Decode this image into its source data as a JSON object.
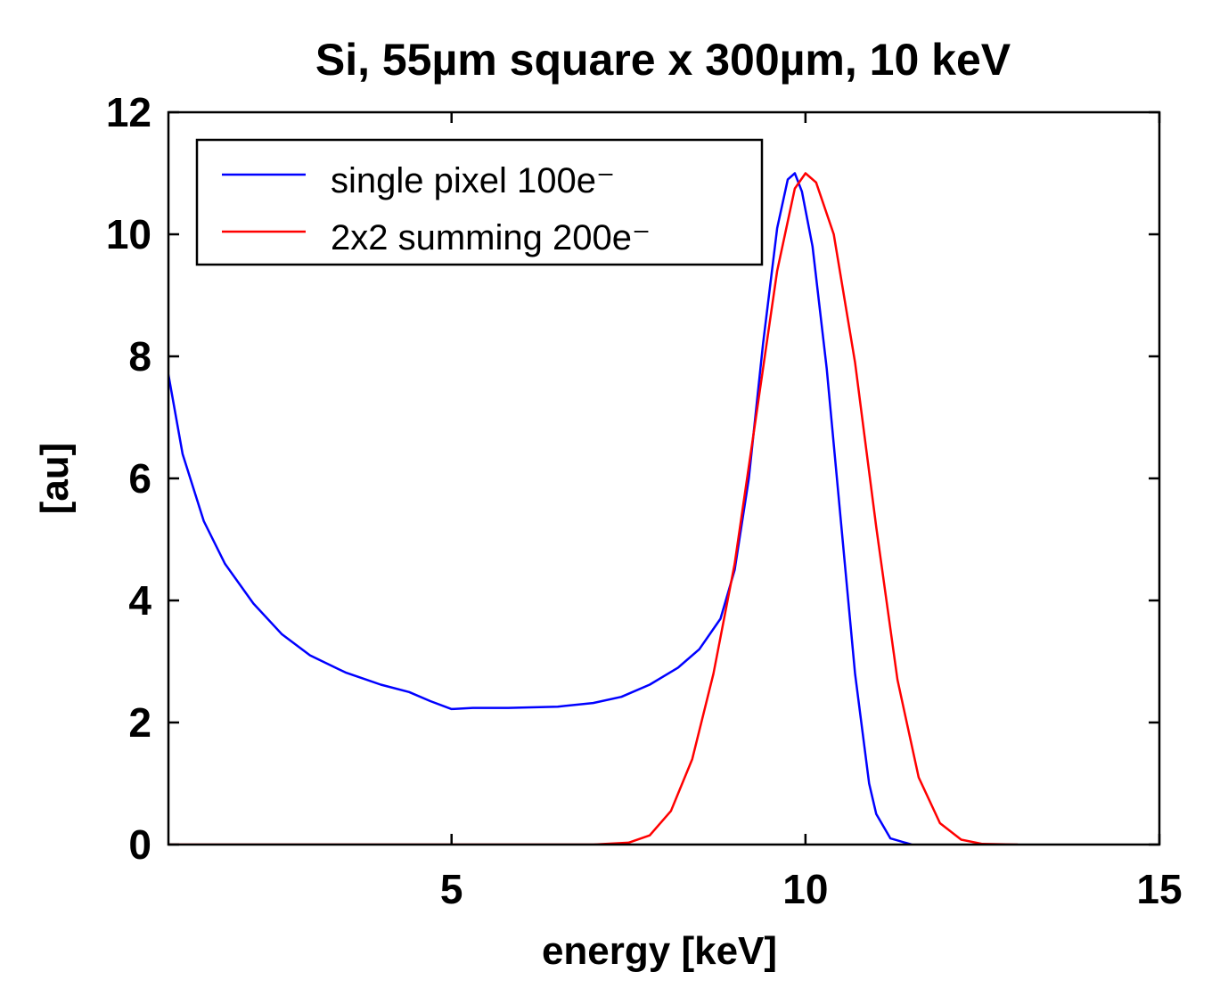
{
  "chart_data": {
    "type": "line",
    "title": "Si, 55µm square x 300µm, 10 keV",
    "xlabel": "energy [keV]",
    "ylabel": "[au]",
    "xlim": [
      1,
      15
    ],
    "ylim": [
      0,
      12
    ],
    "xticks": [
      5,
      10,
      15
    ],
    "yticks": [
      0,
      2,
      4,
      6,
      8,
      10,
      12
    ],
    "grid": false,
    "legend_position": "top-left",
    "series": [
      {
        "name": "single pixel 100e⁻",
        "color": "#0000ff",
        "points": [
          [
            1.0,
            7.7
          ],
          [
            1.2,
            6.4
          ],
          [
            1.5,
            5.3
          ],
          [
            1.8,
            4.6
          ],
          [
            2.2,
            3.95
          ],
          [
            2.6,
            3.45
          ],
          [
            3.0,
            3.1
          ],
          [
            3.5,
            2.82
          ],
          [
            4.0,
            2.62
          ],
          [
            4.4,
            2.5
          ],
          [
            4.7,
            2.35
          ],
          [
            5.0,
            2.22
          ],
          [
            5.3,
            2.24
          ],
          [
            5.8,
            2.24
          ],
          [
            6.5,
            2.26
          ],
          [
            7.0,
            2.32
          ],
          [
            7.4,
            2.42
          ],
          [
            7.8,
            2.62
          ],
          [
            8.2,
            2.9
          ],
          [
            8.5,
            3.2
          ],
          [
            8.8,
            3.7
          ],
          [
            9.0,
            4.5
          ],
          [
            9.2,
            6.0
          ],
          [
            9.4,
            8.2
          ],
          [
            9.6,
            10.1
          ],
          [
            9.75,
            10.9
          ],
          [
            9.85,
            11.0
          ],
          [
            9.95,
            10.7
          ],
          [
            10.1,
            9.8
          ],
          [
            10.3,
            7.8
          ],
          [
            10.5,
            5.3
          ],
          [
            10.7,
            2.8
          ],
          [
            10.9,
            1.0
          ],
          [
            11.0,
            0.5
          ],
          [
            11.2,
            0.1
          ],
          [
            11.5,
            0.0
          ]
        ]
      },
      {
        "name": "2x2 summing 200e⁻",
        "color": "#ff0000",
        "points": [
          [
            1.0,
            0.0
          ],
          [
            7.0,
            0.0
          ],
          [
            7.5,
            0.03
          ],
          [
            7.8,
            0.15
          ],
          [
            8.1,
            0.55
          ],
          [
            8.4,
            1.4
          ],
          [
            8.7,
            2.8
          ],
          [
            9.0,
            4.6
          ],
          [
            9.3,
            7.0
          ],
          [
            9.6,
            9.4
          ],
          [
            9.85,
            10.75
          ],
          [
            10.0,
            11.0
          ],
          [
            10.15,
            10.85
          ],
          [
            10.4,
            10.0
          ],
          [
            10.7,
            7.9
          ],
          [
            11.0,
            5.2
          ],
          [
            11.3,
            2.7
          ],
          [
            11.6,
            1.1
          ],
          [
            11.9,
            0.35
          ],
          [
            12.2,
            0.08
          ],
          [
            12.5,
            0.01
          ],
          [
            13.0,
            0.0
          ]
        ]
      }
    ]
  }
}
